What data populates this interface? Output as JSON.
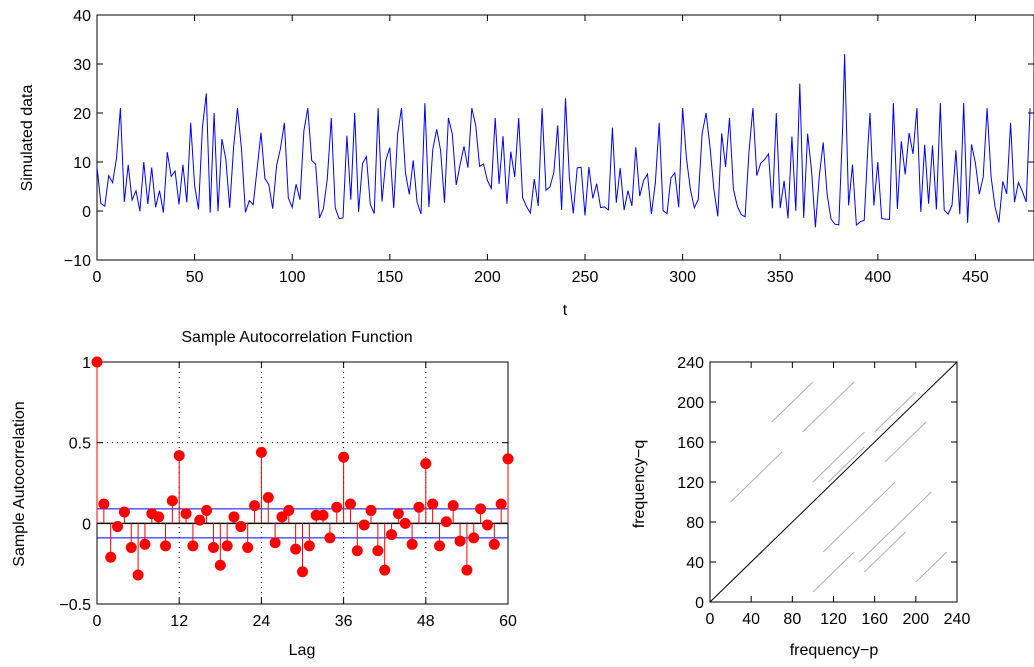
{
  "chart_data": [
    {
      "type": "line",
      "title": "",
      "xlabel": "t",
      "ylabel": "Simulated data",
      "xlim": [
        0,
        480
      ],
      "ylim": [
        -10,
        40
      ],
      "xticks": [
        0,
        50,
        100,
        150,
        200,
        250,
        300,
        350,
        400,
        450
      ],
      "yticks": [
        -10,
        0,
        10,
        20,
        30,
        40
      ],
      "xticklabels": [
        "0",
        "50",
        "100",
        "150",
        "200",
        "250",
        "300",
        "350",
        "400",
        "450"
      ],
      "yticklabels": [
        "−10",
        "0",
        "10",
        "20",
        "30",
        "40"
      ],
      "grid": false,
      "series": [
        {
          "color": "#0000ff",
          "x": [
            0,
            12,
            24,
            36,
            48,
            56,
            60,
            72,
            84,
            96,
            108,
            120,
            132,
            144,
            156,
            168,
            180,
            192,
            204,
            216,
            228,
            240,
            252,
            264,
            276,
            288,
            300,
            312,
            324,
            336,
            348,
            360,
            372,
            383,
            396,
            408,
            420,
            432,
            444,
            456,
            468,
            478
          ],
          "y": [
            9,
            21,
            10,
            12,
            18,
            24,
            20,
            21,
            16,
            18,
            21,
            19,
            20,
            21,
            21,
            22,
            19,
            21,
            19,
            19,
            21,
            23,
            9,
            17,
            13,
            18,
            21,
            20,
            19,
            21,
            20,
            26,
            14,
            32,
            20,
            22,
            21,
            22,
            22,
            21,
            18,
            21
          ],
          "y_min": [
            0,
            -1,
            0,
            -1,
            -1,
            -2,
            0,
            -1,
            -1,
            0,
            -1,
            -2,
            -1,
            -1,
            -2,
            -1,
            -1,
            -1,
            -1,
            -1,
            0,
            -1,
            -1,
            0,
            -1,
            -1,
            -1,
            -1,
            -2,
            -1,
            -1,
            -2,
            -4,
            -5,
            -2,
            -2,
            -2,
            -2,
            -2,
            -5,
            -2,
            -1
          ]
        }
      ]
    },
    {
      "type": "stem",
      "title": "Sample Autocorrelation Function",
      "xlabel": "Lag",
      "ylabel": "Sample Autocorrelation",
      "xlim": [
        0,
        60
      ],
      "ylim": [
        -0.5,
        1
      ],
      "xticks": [
        0,
        12,
        24,
        36,
        48,
        60
      ],
      "yticks": [
        -0.5,
        0,
        0.5,
        1
      ],
      "xticklabels": [
        "0",
        "12",
        "24",
        "36",
        "48",
        "60"
      ],
      "yticklabels": [
        "−0.5",
        "0",
        "0.5",
        "1"
      ],
      "grid": true,
      "confidence_bounds": [
        -0.09,
        0.09
      ],
      "marker_color": "#ff0000",
      "bound_color": "#0000ff",
      "lags": [
        0,
        1,
        2,
        3,
        4,
        5,
        6,
        7,
        8,
        9,
        10,
        11,
        12,
        13,
        14,
        15,
        16,
        17,
        18,
        19,
        20,
        21,
        22,
        23,
        24,
        25,
        26,
        27,
        28,
        29,
        30,
        31,
        32,
        33,
        34,
        35,
        36,
        37,
        38,
        39,
        40,
        41,
        42,
        43,
        44,
        45,
        46,
        47,
        48,
        49,
        50,
        51,
        52,
        53,
        54,
        55,
        56,
        57,
        58,
        59,
        60
      ],
      "values": [
        1.0,
        0.12,
        -0.21,
        -0.02,
        0.07,
        -0.15,
        -0.32,
        -0.13,
        0.06,
        0.04,
        -0.14,
        0.14,
        0.42,
        0.06,
        -0.14,
        0.02,
        0.08,
        -0.15,
        -0.26,
        -0.14,
        0.04,
        -0.02,
        -0.15,
        0.11,
        0.44,
        0.16,
        -0.12,
        0.04,
        0.08,
        -0.16,
        -0.3,
        -0.14,
        0.05,
        0.05,
        -0.09,
        0.1,
        0.41,
        0.12,
        -0.17,
        -0.01,
        0.08,
        -0.17,
        -0.29,
        -0.07,
        0.06,
        0.0,
        -0.13,
        0.1,
        0.37,
        0.12,
        -0.14,
        0.01,
        0.11,
        -0.11,
        -0.29,
        -0.09,
        0.09,
        -0.01,
        -0.13,
        0.12,
        0.4
      ]
    },
    {
      "type": "scatter",
      "title": "",
      "xlabel": "frequency−p",
      "ylabel": "frequency−q",
      "xlim": [
        0,
        240
      ],
      "ylim": [
        0,
        240
      ],
      "xticks": [
        0,
        40,
        80,
        120,
        160,
        200,
        240
      ],
      "yticks": [
        0,
        40,
        80,
        120,
        160,
        200,
        240
      ],
      "xticklabels": [
        "0",
        "40",
        "80",
        "120",
        "160",
        "200",
        "240"
      ],
      "yticklabels": [
        "0",
        "40",
        "80",
        "120",
        "160",
        "200",
        "240"
      ],
      "grid": false,
      "diagonal_color": "#000000",
      "segment_color": "#b0b0b0",
      "segments": [
        {
          "x": [
            20,
            70
          ],
          "y": [
            100,
            150
          ]
        },
        {
          "x": [
            90,
            140
          ],
          "y": [
            170,
            220
          ]
        },
        {
          "x": [
            100,
            150
          ],
          "y": [
            120,
            170
          ]
        },
        {
          "x": [
            115,
            150
          ],
          "y": [
            120,
            155
          ]
        },
        {
          "x": [
            160,
            200
          ],
          "y": [
            170,
            210
          ]
        },
        {
          "x": [
            60,
            100
          ],
          "y": [
            180,
            220
          ]
        },
        {
          "x": [
            110,
            180
          ],
          "y": [
            50,
            120
          ]
        },
        {
          "x": [
            145,
            215
          ],
          "y": [
            40,
            110
          ]
        },
        {
          "x": [
            100,
            140
          ],
          "y": [
            10,
            50
          ]
        },
        {
          "x": [
            150,
            190
          ],
          "y": [
            30,
            70
          ]
        },
        {
          "x": [
            170,
            210
          ],
          "y": [
            140,
            180
          ]
        },
        {
          "x": [
            200,
            230
          ],
          "y": [
            20,
            50
          ]
        }
      ]
    }
  ]
}
